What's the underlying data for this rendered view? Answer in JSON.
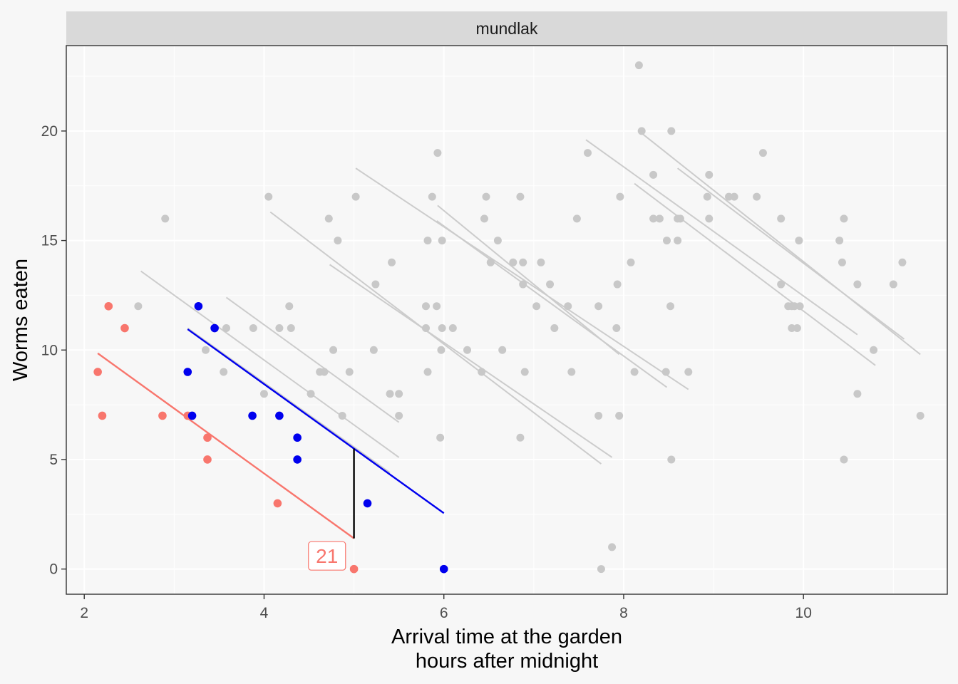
{
  "chart_data": {
    "type": "scatter",
    "facet_label": "mundlak",
    "xlabel_line1": "Arrival time at the garden",
    "xlabel_line2": "hours after midnight",
    "ylabel": "Worms eaten",
    "xlim": [
      1.8,
      11.6
    ],
    "ylim": [
      -1.15,
      23.9
    ],
    "x_ticks": [
      2,
      4,
      6,
      8,
      10
    ],
    "y_ticks": [
      0,
      5,
      10,
      15,
      20
    ],
    "x_tick_labels": [
      "2",
      "4",
      "6",
      "8",
      "10"
    ],
    "y_tick_labels": [
      "0",
      "5",
      "10",
      "15",
      "20"
    ],
    "grid": true,
    "colors": {
      "background": "#f7f7f7",
      "strip": "#d9d9d9",
      "grid": "#ffffff",
      "gray_points": "#c8c8c8",
      "gray_lines": "#cccccc",
      "red": "#f8766d",
      "blue": "#0000ee",
      "residual": "#000000"
    },
    "gray_points": [
      [
        2.6,
        12
      ],
      [
        2.9,
        16
      ],
      [
        3.35,
        10
      ],
      [
        3.55,
        9
      ],
      [
        3.58,
        11
      ],
      [
        3.88,
        11
      ],
      [
        4.0,
        8
      ],
      [
        4.05,
        17
      ],
      [
        4.17,
        11
      ],
      [
        4.28,
        12
      ],
      [
        4.3,
        11
      ],
      [
        4.52,
        8
      ],
      [
        4.62,
        9
      ],
      [
        4.67,
        9
      ],
      [
        4.72,
        16
      ],
      [
        4.77,
        10
      ],
      [
        4.82,
        15
      ],
      [
        4.87,
        7
      ],
      [
        4.95,
        9
      ],
      [
        5.02,
        17
      ],
      [
        5.22,
        10
      ],
      [
        5.24,
        13
      ],
      [
        5.4,
        8
      ],
      [
        5.42,
        14
      ],
      [
        5.5,
        8
      ],
      [
        5.5,
        7
      ],
      [
        5.8,
        11
      ],
      [
        5.8,
        12
      ],
      [
        5.82,
        9
      ],
      [
        5.82,
        15
      ],
      [
        5.87,
        17
      ],
      [
        5.92,
        12
      ],
      [
        5.93,
        19
      ],
      [
        5.96,
        6
      ],
      [
        5.97,
        10
      ],
      [
        5.98,
        11
      ],
      [
        5.98,
        15
      ],
      [
        6.1,
        11
      ],
      [
        6.26,
        10
      ],
      [
        6.45,
        16
      ],
      [
        6.42,
        9
      ],
      [
        6.47,
        17
      ],
      [
        6.52,
        14
      ],
      [
        6.6,
        15
      ],
      [
        6.65,
        10
      ],
      [
        6.77,
        14
      ],
      [
        6.85,
        17
      ],
      [
        6.85,
        6
      ],
      [
        6.88,
        13
      ],
      [
        6.88,
        14
      ],
      [
        6.9,
        9
      ],
      [
        7.03,
        12
      ],
      [
        7.08,
        14
      ],
      [
        7.18,
        13
      ],
      [
        7.23,
        11
      ],
      [
        7.38,
        12
      ],
      [
        7.42,
        9
      ],
      [
        7.48,
        16
      ],
      [
        7.6,
        19
      ],
      [
        7.72,
        12
      ],
      [
        7.72,
        7
      ],
      [
        7.75,
        0
      ],
      [
        7.87,
        1
      ],
      [
        7.92,
        11
      ],
      [
        7.93,
        13
      ],
      [
        7.95,
        7
      ],
      [
        7.96,
        17
      ],
      [
        8.08,
        14
      ],
      [
        8.12,
        9
      ],
      [
        8.17,
        23
      ],
      [
        8.2,
        20
      ],
      [
        8.33,
        18
      ],
      [
        8.33,
        16
      ],
      [
        8.4,
        16
      ],
      [
        8.47,
        9
      ],
      [
        8.48,
        15
      ],
      [
        8.52,
        12
      ],
      [
        8.53,
        20
      ],
      [
        8.53,
        5
      ],
      [
        8.6,
        15
      ],
      [
        8.6,
        16
      ],
      [
        8.63,
        16
      ],
      [
        8.72,
        9
      ],
      [
        8.93,
        17
      ],
      [
        8.95,
        16
      ],
      [
        8.95,
        18
      ],
      [
        9.17,
        17
      ],
      [
        9.23,
        17
      ],
      [
        9.48,
        17
      ],
      [
        9.55,
        19
      ],
      [
        9.75,
        16
      ],
      [
        9.75,
        13
      ],
      [
        9.83,
        12
      ],
      [
        9.87,
        12
      ],
      [
        9.87,
        11
      ],
      [
        9.9,
        12
      ],
      [
        9.93,
        11
      ],
      [
        9.95,
        15
      ],
      [
        9.96,
        12
      ],
      [
        10.4,
        15
      ],
      [
        10.43,
        14
      ],
      [
        10.45,
        16
      ],
      [
        10.45,
        5
      ],
      [
        10.6,
        13
      ],
      [
        10.6,
        8
      ],
      [
        10.78,
        10
      ],
      [
        11.0,
        13
      ],
      [
        11.1,
        14
      ],
      [
        11.3,
        7
      ]
    ],
    "gray_lines": [
      [
        [
          2.63,
          13.6
        ],
        [
          5.5,
          5.1
        ]
      ],
      [
        [
          3.15,
          11.0
        ],
        [
          5.4,
          4.4
        ]
      ],
      [
        [
          3.58,
          12.4
        ],
        [
          5.5,
          6.7
        ]
      ],
      [
        [
          4.07,
          16.3
        ],
        [
          7.75,
          4.8
        ]
      ],
      [
        [
          4.73,
          13.9
        ],
        [
          7.87,
          5.1
        ]
      ],
      [
        [
          5.02,
          18.3
        ],
        [
          8.72,
          8.2
        ]
      ],
      [
        [
          5.92,
          15.9
        ],
        [
          8.48,
          8.3
        ]
      ],
      [
        [
          5.93,
          16.6
        ],
        [
          7.95,
          9.8
        ]
      ],
      [
        [
          7.58,
          19.6
        ],
        [
          10.6,
          10.7
        ]
      ],
      [
        [
          8.2,
          19.9
        ],
        [
          11.3,
          9.8
        ]
      ],
      [
        [
          8.12,
          17.6
        ],
        [
          10.8,
          9.3
        ]
      ],
      [
        [
          8.6,
          18.3
        ],
        [
          11.12,
          10.5
        ]
      ]
    ],
    "red_points": [
      [
        2.15,
        9
      ],
      [
        2.2,
        7
      ],
      [
        2.27,
        12
      ],
      [
        2.45,
        11
      ],
      [
        2.87,
        7
      ],
      [
        3.15,
        7
      ],
      [
        3.37,
        6
      ],
      [
        3.37,
        5
      ],
      [
        4.15,
        3
      ],
      [
        5.0,
        0
      ]
    ],
    "blue_points": [
      [
        3.15,
        9
      ],
      [
        3.2,
        7
      ],
      [
        3.27,
        12
      ],
      [
        3.45,
        11
      ],
      [
        3.87,
        7
      ],
      [
        4.17,
        7
      ],
      [
        4.37,
        6
      ],
      [
        4.37,
        5
      ],
      [
        5.15,
        3
      ],
      [
        6.0,
        0
      ]
    ],
    "red_line": [
      [
        2.15,
        9.85
      ],
      [
        5.0,
        1.4
      ]
    ],
    "blue_line": [
      [
        3.15,
        10.95
      ],
      [
        6.0,
        2.55
      ]
    ],
    "residual_segment": [
      [
        5.0,
        1.4
      ],
      [
        5.0,
        5.5
      ]
    ],
    "annotation": {
      "text": "21",
      "x": 4.7,
      "y": 0.6
    }
  }
}
